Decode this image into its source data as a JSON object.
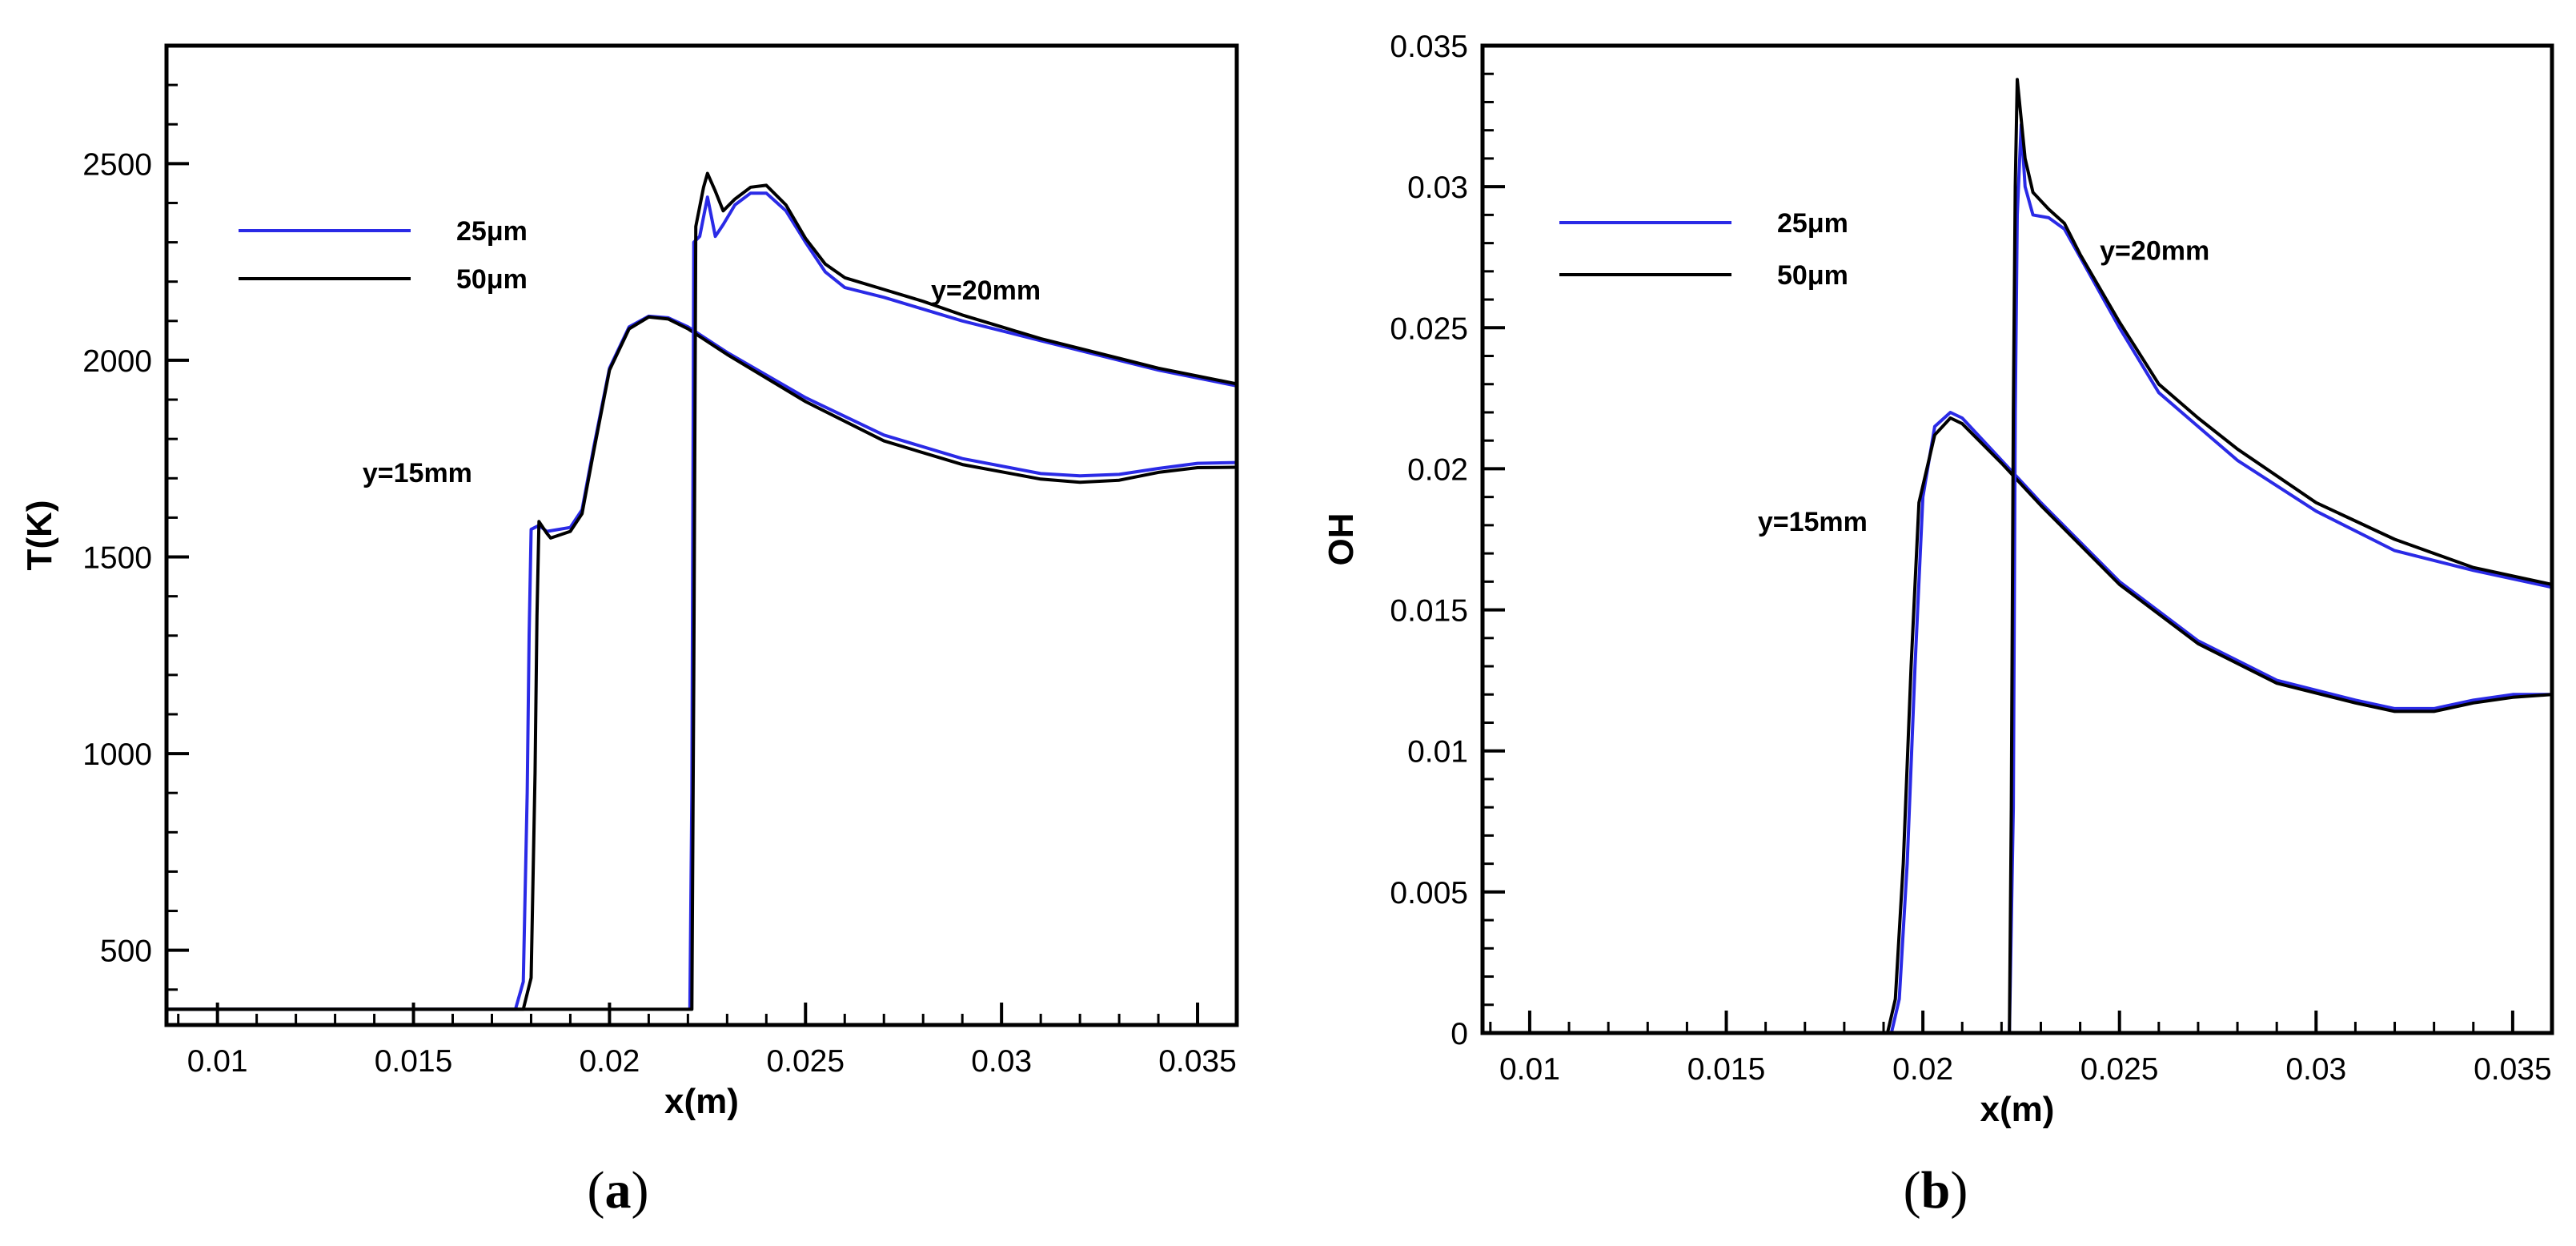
{
  "chart_data": [
    {
      "type": "line",
      "panel": "a",
      "caption_letter": "a",
      "xlabel": "x(m)",
      "ylabel": "T(K)",
      "xlim": [
        0.0087,
        0.036
      ],
      "ylim": [
        310,
        2800
      ],
      "xticks": [
        0.01,
        0.015,
        0.02,
        0.025,
        0.03,
        0.035
      ],
      "xtick_labels": [
        "0.01",
        "0.015",
        "0.02",
        "0.025",
        "0.03",
        "0.035"
      ],
      "yticks": [
        500,
        1000,
        1500,
        2000,
        2500
      ],
      "ytick_labels": [
        "500",
        "1000",
        "1500",
        "2000",
        "2500"
      ],
      "legend": {
        "position": "top-left",
        "entries": [
          {
            "label": "25μm",
            "color": "#2a2ae6"
          },
          {
            "label": "50μm",
            "color": "#000000"
          }
        ]
      },
      "annotations": [
        {
          "text": "y=15mm",
          "x": 0.0137,
          "y": 1690
        },
        {
          "text": "y=20mm",
          "x": 0.0282,
          "y": 2155
        }
      ],
      "series": [
        {
          "name": "25μm",
          "group": "y=15mm",
          "color": "#2a2ae6",
          "points": [
            [
              0.0087,
              350
            ],
            [
              0.0176,
              350
            ],
            [
              0.0178,
              420
            ],
            [
              0.0179,
              900
            ],
            [
              0.01795,
              1300
            ],
            [
              0.018,
              1570
            ],
            [
              0.0182,
              1580
            ],
            [
              0.0184,
              1565
            ],
            [
              0.019,
              1575
            ],
            [
              0.0193,
              1620
            ],
            [
              0.0196,
              1780
            ],
            [
              0.02,
              1980
            ],
            [
              0.0205,
              2085
            ],
            [
              0.021,
              2112
            ],
            [
              0.0215,
              2108
            ],
            [
              0.022,
              2085
            ],
            [
              0.023,
              2020
            ],
            [
              0.025,
              1905
            ],
            [
              0.027,
              1810
            ],
            [
              0.029,
              1750
            ],
            [
              0.031,
              1712
            ],
            [
              0.032,
              1706
            ],
            [
              0.033,
              1710
            ],
            [
              0.034,
              1725
            ],
            [
              0.035,
              1738
            ],
            [
              0.036,
              1740
            ]
          ]
        },
        {
          "name": "50μm",
          "group": "y=15mm",
          "color": "#000000",
          "points": [
            [
              0.0087,
              350
            ],
            [
              0.0178,
              350
            ],
            [
              0.018,
              430
            ],
            [
              0.0181,
              950
            ],
            [
              0.01815,
              1350
            ],
            [
              0.0182,
              1590
            ],
            [
              0.0184,
              1560
            ],
            [
              0.0185,
              1548
            ],
            [
              0.019,
              1565
            ],
            [
              0.0193,
              1610
            ],
            [
              0.0196,
              1770
            ],
            [
              0.02,
              1975
            ],
            [
              0.0205,
              2080
            ],
            [
              0.021,
              2110
            ],
            [
              0.0215,
              2105
            ],
            [
              0.022,
              2080
            ],
            [
              0.023,
              2015
            ],
            [
              0.025,
              1895
            ],
            [
              0.027,
              1795
            ],
            [
              0.029,
              1735
            ],
            [
              0.031,
              1698
            ],
            [
              0.032,
              1690
            ],
            [
              0.033,
              1695
            ],
            [
              0.034,
              1715
            ],
            [
              0.035,
              1727
            ],
            [
              0.036,
              1728
            ]
          ]
        },
        {
          "name": "25μm",
          "group": "y=20mm",
          "color": "#2a2ae6",
          "points": [
            [
              0.02205,
              350
            ],
            [
              0.0221,
              900
            ],
            [
              0.02215,
              2300
            ],
            [
              0.0223,
              2315
            ],
            [
              0.0225,
              2415
            ],
            [
              0.0227,
              2315
            ],
            [
              0.0229,
              2345
            ],
            [
              0.0232,
              2395
            ],
            [
              0.0236,
              2425
            ],
            [
              0.024,
              2425
            ],
            [
              0.0245,
              2380
            ],
            [
              0.025,
              2300
            ],
            [
              0.0255,
              2225
            ],
            [
              0.026,
              2185
            ],
            [
              0.027,
              2160
            ],
            [
              0.028,
              2130
            ],
            [
              0.029,
              2100
            ],
            [
              0.03,
              2075
            ],
            [
              0.031,
              2050
            ],
            [
              0.032,
              2025
            ],
            [
              0.033,
              2000
            ],
            [
              0.034,
              1975
            ],
            [
              0.035,
              1955
            ],
            [
              0.036,
              1935
            ]
          ]
        },
        {
          "name": "50μm",
          "group": "y=20mm",
          "color": "#000000",
          "points": [
            [
              0.0087,
              350
            ],
            [
              0.0221,
              350
            ],
            [
              0.02215,
              1200
            ],
            [
              0.0222,
              2340
            ],
            [
              0.0224,
              2440
            ],
            [
              0.0225,
              2475
            ],
            [
              0.0227,
              2430
            ],
            [
              0.0229,
              2380
            ],
            [
              0.0232,
              2410
            ],
            [
              0.0236,
              2440
            ],
            [
              0.024,
              2445
            ],
            [
              0.0245,
              2395
            ],
            [
              0.025,
              2310
            ],
            [
              0.0255,
              2245
            ],
            [
              0.026,
              2210
            ],
            [
              0.027,
              2180
            ],
            [
              0.028,
              2150
            ],
            [
              0.029,
              2115
            ],
            [
              0.03,
              2085
            ],
            [
              0.031,
              2055
            ],
            [
              0.032,
              2030
            ],
            [
              0.033,
              2005
            ],
            [
              0.034,
              1980
            ],
            [
              0.035,
              1960
            ],
            [
              0.036,
              1940
            ]
          ]
        }
      ]
    },
    {
      "type": "line",
      "panel": "b",
      "caption_letter": "b",
      "xlabel": "x(m)",
      "ylabel": "OH",
      "xlim": [
        0.0088,
        0.036
      ],
      "ylim": [
        0,
        0.035
      ],
      "xticks": [
        0.01,
        0.015,
        0.02,
        0.025,
        0.03,
        0.035
      ],
      "xtick_labels": [
        "0.01",
        "0.015",
        "0.02",
        "0.025",
        "0.03",
        "0.035"
      ],
      "yticks": [
        0,
        0.005,
        0.01,
        0.015,
        0.02,
        0.025,
        0.03,
        0.035
      ],
      "ytick_labels": [
        "0",
        "0.005",
        "0.01",
        "0.015",
        "0.02",
        "0.025",
        "0.03",
        "0.035"
      ],
      "legend": {
        "position": "top-left",
        "entries": [
          {
            "label": "25μm",
            "color": "#2a2ae6"
          },
          {
            "label": "50μm",
            "color": "#000000"
          }
        ]
      },
      "annotations": [
        {
          "text": "y=15mm",
          "x": 0.0158,
          "y": 0.0178
        },
        {
          "text": "y=20mm",
          "x": 0.0245,
          "y": 0.0274
        }
      ],
      "series": [
        {
          "name": "25μm",
          "group": "y=15mm",
          "color": "#2a2ae6",
          "points": [
            [
              0.0192,
              0
            ],
            [
              0.0194,
              0.0012
            ],
            [
              0.0196,
              0.006
            ],
            [
              0.0198,
              0.013
            ],
            [
              0.02,
              0.019
            ],
            [
              0.0203,
              0.0215
            ],
            [
              0.0207,
              0.022
            ],
            [
              0.021,
              0.0218
            ],
            [
              0.022,
              0.0203
            ],
            [
              0.023,
              0.0188
            ],
            [
              0.025,
              0.016
            ],
            [
              0.027,
              0.0139
            ],
            [
              0.029,
              0.0125
            ],
            [
              0.031,
              0.0118
            ],
            [
              0.032,
              0.0115
            ],
            [
              0.033,
              0.0115
            ],
            [
              0.034,
              0.0118
            ],
            [
              0.035,
              0.012
            ],
            [
              0.036,
              0.012
            ]
          ]
        },
        {
          "name": "50μm",
          "group": "y=15mm",
          "color": "#000000",
          "points": [
            [
              0.0191,
              0
            ],
            [
              0.0193,
              0.0012
            ],
            [
              0.0195,
              0.006
            ],
            [
              0.0197,
              0.013
            ],
            [
              0.0199,
              0.0188
            ],
            [
              0.0203,
              0.0212
            ],
            [
              0.0207,
              0.0218
            ],
            [
              0.021,
              0.0216
            ],
            [
              0.022,
              0.0202
            ],
            [
              0.023,
              0.0187
            ],
            [
              0.025,
              0.0159
            ],
            [
              0.027,
              0.0138
            ],
            [
              0.029,
              0.0124
            ],
            [
              0.031,
              0.0117
            ],
            [
              0.032,
              0.0114
            ],
            [
              0.033,
              0.0114
            ],
            [
              0.034,
              0.0117
            ],
            [
              0.035,
              0.0119
            ],
            [
              0.036,
              0.012
            ]
          ]
        },
        {
          "name": "25μm",
          "group": "y=20mm",
          "color": "#2a2ae6",
          "points": [
            [
              0.0222,
              0
            ],
            [
              0.0223,
              0.008
            ],
            [
              0.02235,
              0.022
            ],
            [
              0.0224,
              0.029
            ],
            [
              0.0225,
              0.0322
            ],
            [
              0.0226,
              0.03
            ],
            [
              0.0228,
              0.029
            ],
            [
              0.0232,
              0.0289
            ],
            [
              0.0236,
              0.0285
            ],
            [
              0.024,
              0.0275
            ],
            [
              0.025,
              0.025
            ],
            [
              0.026,
              0.0227
            ],
            [
              0.027,
              0.0215
            ],
            [
              0.028,
              0.0203
            ],
            [
              0.03,
              0.0185
            ],
            [
              0.032,
              0.0171
            ],
            [
              0.034,
              0.0164
            ],
            [
              0.036,
              0.0158
            ]
          ]
        },
        {
          "name": "50μm",
          "group": "y=20mm",
          "color": "#000000",
          "points": [
            [
              0.0222,
              0
            ],
            [
              0.02225,
              0.008
            ],
            [
              0.0223,
              0.022
            ],
            [
              0.02235,
              0.03
            ],
            [
              0.0224,
              0.0338
            ],
            [
              0.0226,
              0.031
            ],
            [
              0.0228,
              0.0298
            ],
            [
              0.0232,
              0.0292
            ],
            [
              0.0236,
              0.0287
            ],
            [
              0.024,
              0.0276
            ],
            [
              0.025,
              0.0252
            ],
            [
              0.026,
              0.023
            ],
            [
              0.027,
              0.0218
            ],
            [
              0.028,
              0.0207
            ],
            [
              0.03,
              0.0188
            ],
            [
              0.032,
              0.0175
            ],
            [
              0.034,
              0.0165
            ],
            [
              0.036,
              0.0159
            ]
          ]
        }
      ]
    }
  ]
}
